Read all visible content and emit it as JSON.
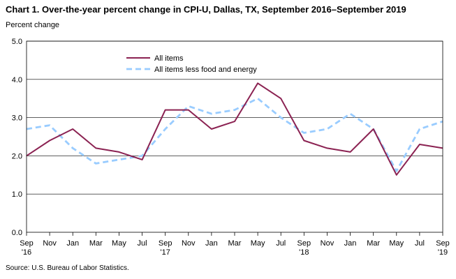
{
  "chart_data": {
    "type": "line",
    "title": "Chart 1. Over-the-year percent change in CPI-U, Dallas, TX, September 2016–September 2019",
    "ylabel": "Percent change",
    "xlabel": "",
    "ylim": [
      0.0,
      5.0
    ],
    "yticks": [
      "0.0",
      "1.0",
      "2.0",
      "3.0",
      "4.0",
      "5.0"
    ],
    "x_ticks": [
      {
        "label": "Sep",
        "year": "'16"
      },
      {
        "label": "Nov",
        "year": ""
      },
      {
        "label": "Jan",
        "year": ""
      },
      {
        "label": "Mar",
        "year": ""
      },
      {
        "label": "May",
        "year": ""
      },
      {
        "label": "Jul",
        "year": ""
      },
      {
        "label": "Sep",
        "year": "'17"
      },
      {
        "label": "Nov",
        "year": ""
      },
      {
        "label": "Jan",
        "year": ""
      },
      {
        "label": "Mar",
        "year": ""
      },
      {
        "label": "May",
        "year": ""
      },
      {
        "label": "Jul",
        "year": ""
      },
      {
        "label": "Sep",
        "year": "'18"
      },
      {
        "label": "Nov",
        "year": ""
      },
      {
        "label": "Jan",
        "year": ""
      },
      {
        "label": "Mar",
        "year": ""
      },
      {
        "label": "May",
        "year": ""
      },
      {
        "label": "Jul",
        "year": ""
      },
      {
        "label": "Sep",
        "year": "'19"
      }
    ],
    "x": [
      "Sep 2016",
      "Nov 2016",
      "Jan 2017",
      "Mar 2017",
      "May 2017",
      "Jul 2017",
      "Sep 2017",
      "Nov 2017",
      "Jan 2018",
      "Mar 2018",
      "May 2018",
      "Jul 2018",
      "Sep 2018",
      "Nov 2018",
      "Jan 2019",
      "Mar 2019",
      "May 2019",
      "Jul 2019",
      "Sep 2019"
    ],
    "series": [
      {
        "name": "All items",
        "color": "#8B2252",
        "style": "solid",
        "values": [
          2.0,
          2.4,
          2.7,
          2.2,
          2.1,
          1.9,
          3.2,
          3.2,
          2.7,
          2.9,
          3.9,
          3.5,
          2.4,
          2.2,
          2.1,
          2.7,
          1.5,
          2.3,
          2.2
        ]
      },
      {
        "name": "All items less food and energy",
        "color": "#99CCFF",
        "style": "dashed",
        "values": [
          2.7,
          2.8,
          2.2,
          1.8,
          1.9,
          2.0,
          2.7,
          3.3,
          3.1,
          3.2,
          3.5,
          3.0,
          2.6,
          2.7,
          3.1,
          2.7,
          1.6,
          2.7,
          2.9
        ]
      }
    ],
    "grid": true,
    "legend_position": "top-left"
  },
  "source": "Source: U.S. Bureau of Labor Statistics."
}
